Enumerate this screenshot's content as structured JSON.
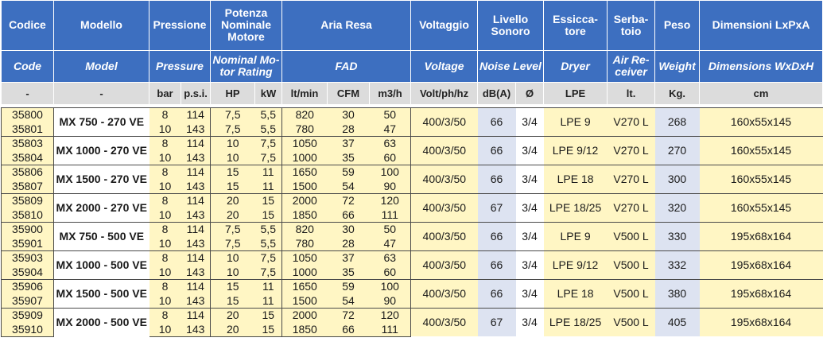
{
  "headers_it": {
    "code": "Codice",
    "model": "Modello",
    "pressure": "Pressione",
    "power": "Potenza Nominale Motore",
    "fad": "Aria Resa",
    "voltage": "Voltaggio",
    "noise": "Livello Sonoro",
    "dryer": "Essicca-tore",
    "tank": "Serba-toio",
    "weight": "Peso",
    "dims": "Dimensioni LxPxA"
  },
  "headers_en": {
    "code": "Code",
    "model": "Model",
    "pressure": "Pressure",
    "power": "Nominal Mo-tor Rating",
    "fad": "FAD",
    "voltage": "Voltage",
    "noise": "Noise Level",
    "dryer": "Dryer",
    "tank": "Air Re-ceiver",
    "weight": "Weight",
    "dims": "Dimensions WxDxH"
  },
  "units": {
    "code": "-",
    "model": "-",
    "bar": "bar",
    "psi": "p.s.i.",
    "hp": "HP",
    "kw": "kW",
    "ltmin": "lt/min",
    "cfm": "CFM",
    "m3h": "m3/h",
    "voltage": "Volt/ph/hz",
    "dba": "dB(A)",
    "phi": "Ø",
    "dryer": "LPE",
    "tank": "lt.",
    "weight": "Kg.",
    "dims": "cm"
  },
  "groups": [
    {
      "model": "MX 750 - 270 VE",
      "voltage": "400/3/50",
      "dba": "66",
      "phi": "3/4",
      "dryer_name": "LPE",
      "dryer_size": "9",
      "tank_v": "V",
      "tank_size": "270 L",
      "weight": "268",
      "dims": "160x55x145",
      "rows": [
        {
          "code": "35800",
          "bar": "8",
          "psi": "114",
          "hp": "7,5",
          "kw": "5,5",
          "ltmin": "820",
          "cfm": "30",
          "m3h": "50"
        },
        {
          "code": "35801",
          "bar": "10",
          "psi": "143",
          "hp": "7,5",
          "kw": "5,5",
          "ltmin": "780",
          "cfm": "28",
          "m3h": "47"
        }
      ]
    },
    {
      "model": "MX 1000 - 270 VE",
      "voltage": "400/3/50",
      "dba": "66",
      "phi": "3/4",
      "dryer_name": "LPE",
      "dryer_size": "9/12",
      "tank_v": "V",
      "tank_size": "270 L",
      "weight": "270",
      "dims": "160x55x145",
      "rows": [
        {
          "code": "35803",
          "bar": "8",
          "psi": "114",
          "hp": "10",
          "kw": "7,5",
          "ltmin": "1050",
          "cfm": "37",
          "m3h": "63"
        },
        {
          "code": "35804",
          "bar": "10",
          "psi": "143",
          "hp": "10",
          "kw": "7,5",
          "ltmin": "1000",
          "cfm": "35",
          "m3h": "60"
        }
      ]
    },
    {
      "model": "MX 1500 - 270 VE",
      "voltage": "400/3/50",
      "dba": "66",
      "phi": "3/4",
      "dryer_name": "LPE",
      "dryer_size": "18",
      "tank_v": "V",
      "tank_size": "270 L",
      "weight": "300",
      "dims": "160x55x145",
      "rows": [
        {
          "code": "35806",
          "bar": "8",
          "psi": "114",
          "hp": "15",
          "kw": "11",
          "ltmin": "1650",
          "cfm": "59",
          "m3h": "100"
        },
        {
          "code": "35807",
          "bar": "10",
          "psi": "143",
          "hp": "15",
          "kw": "11",
          "ltmin": "1500",
          "cfm": "54",
          "m3h": "90"
        }
      ]
    },
    {
      "model": "MX 2000 - 270 VE",
      "voltage": "400/3/50",
      "dba": "67",
      "phi": "3/4",
      "dryer_name": "LPE",
      "dryer_size": "18/25",
      "tank_v": "V",
      "tank_size": "270 L",
      "weight": "320",
      "dims": "160x55x145",
      "rows": [
        {
          "code": "35809",
          "bar": "8",
          "psi": "114",
          "hp": "20",
          "kw": "15",
          "ltmin": "2000",
          "cfm": "72",
          "m3h": "120"
        },
        {
          "code": "35810",
          "bar": "10",
          "psi": "143",
          "hp": "20",
          "kw": "15",
          "ltmin": "1850",
          "cfm": "66",
          "m3h": "111"
        }
      ]
    },
    {
      "model": "MX 750 - 500 VE",
      "voltage": "400/3/50",
      "dba": "66",
      "phi": "3/4",
      "dryer_name": "LPE",
      "dryer_size": "9",
      "tank_v": "V",
      "tank_size": "500 L",
      "weight": "330",
      "dims": "195x68x164",
      "rows": [
        {
          "code": "35900",
          "bar": "8",
          "psi": "114",
          "hp": "7,5",
          "kw": "5,5",
          "ltmin": "820",
          "cfm": "30",
          "m3h": "50"
        },
        {
          "code": "35901",
          "bar": "10",
          "psi": "143",
          "hp": "7,5",
          "kw": "5,5",
          "ltmin": "780",
          "cfm": "28",
          "m3h": "47"
        }
      ]
    },
    {
      "model": "MX 1000 - 500 VE",
      "voltage": "400/3/50",
      "dba": "66",
      "phi": "3/4",
      "dryer_name": "LPE",
      "dryer_size": "9/12",
      "tank_v": "V",
      "tank_size": "500 L",
      "weight": "332",
      "dims": "195x68x164",
      "rows": [
        {
          "code": "35903",
          "bar": "8",
          "psi": "114",
          "hp": "10",
          "kw": "7,5",
          "ltmin": "1050",
          "cfm": "37",
          "m3h": "63"
        },
        {
          "code": "35904",
          "bar": "10",
          "psi": "143",
          "hp": "10",
          "kw": "7,5",
          "ltmin": "1000",
          "cfm": "35",
          "m3h": "60"
        }
      ]
    },
    {
      "model": "MX 1500 - 500 VE",
      "voltage": "400/3/50",
      "dba": "66",
      "phi": "3/4",
      "dryer_name": "LPE",
      "dryer_size": "18",
      "tank_v": "V",
      "tank_size": "500 L",
      "weight": "380",
      "dims": "195x68x164",
      "rows": [
        {
          "code": "35906",
          "bar": "8",
          "psi": "114",
          "hp": "15",
          "kw": "11",
          "ltmin": "1650",
          "cfm": "59",
          "m3h": "100"
        },
        {
          "code": "35907",
          "bar": "10",
          "psi": "143",
          "hp": "15",
          "kw": "11",
          "ltmin": "1500",
          "cfm": "54",
          "m3h": "90"
        }
      ]
    },
    {
      "model": "MX 2000 - 500 VE",
      "voltage": "400/3/50",
      "dba": "67",
      "phi": "3/4",
      "dryer_name": "LPE",
      "dryer_size": "18/25",
      "tank_v": "V",
      "tank_size": "500 L",
      "weight": "405",
      "dims": "195x68x164",
      "rows": [
        {
          "code": "35909",
          "bar": "8",
          "psi": "114",
          "hp": "20",
          "kw": "15",
          "ltmin": "2000",
          "cfm": "72",
          "m3h": "120"
        },
        {
          "code": "35910",
          "bar": "10",
          "psi": "143",
          "hp": "20",
          "kw": "15",
          "ltmin": "1850",
          "cfm": "66",
          "m3h": "111"
        }
      ]
    }
  ]
}
